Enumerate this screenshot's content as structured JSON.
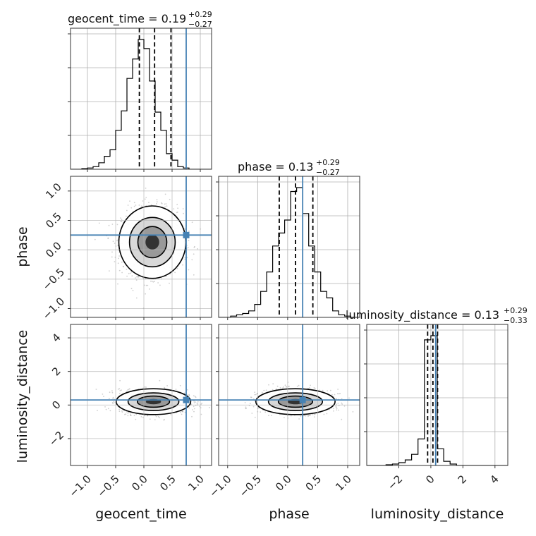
{
  "chart_data": {
    "type": "corner",
    "parameters": [
      "geocent_time",
      "phase",
      "luminosity_distance"
    ],
    "truths": [
      0.75,
      0.25,
      0.3
    ],
    "colors": {
      "truth": "#4682b4",
      "hist": "#000000",
      "grid": "#b0b0b0",
      "scatter": "#777777"
    },
    "grid": true,
    "marginals": [
      {
        "parameter": "geocent_time",
        "title": "geocent_time = 0.19",
        "title_plus": "+0.29",
        "title_minus": "−0.27",
        "median": 0.19,
        "quantiles": [
          -0.08,
          0.19,
          0.48
        ],
        "range": [
          -1.3,
          1.2
        ],
        "bin_edges": [
          -1.3,
          -1.2,
          -1.1,
          -1.0,
          -0.9,
          -0.8,
          -0.7,
          -0.6,
          -0.5,
          -0.4,
          -0.3,
          -0.2,
          -0.1,
          0.0,
          0.1,
          0.2,
          0.3,
          0.4,
          0.5,
          0.6,
          0.7,
          0.8,
          0.9,
          1.0,
          1.1,
          1.2
        ],
        "counts": [
          0,
          0,
          0.005,
          0.01,
          0.02,
          0.05,
          0.1,
          0.15,
          0.3,
          0.45,
          0.7,
          0.85,
          1.0,
          0.93,
          0.68,
          0.44,
          0.3,
          0.12,
          0.07,
          0.02,
          0.01,
          0,
          0,
          0,
          0
        ]
      },
      {
        "parameter": "phase",
        "title": "phase = 0.13",
        "title_plus": "+0.29",
        "title_minus": "−0.27",
        "median": 0.13,
        "quantiles": [
          -0.14,
          0.13,
          0.42
        ],
        "range": [
          -1.15,
          1.2
        ],
        "bin_edges": [
          -1.15,
          -1.05,
          -0.95,
          -0.85,
          -0.75,
          -0.65,
          -0.55,
          -0.45,
          -0.35,
          -0.25,
          -0.15,
          -0.05,
          0.05,
          0.15,
          0.25,
          0.35,
          0.45,
          0.55,
          0.65,
          0.75,
          0.85,
          0.95,
          1.05,
          1.15,
          1.2
        ],
        "counts": [
          0,
          0,
          0.01,
          0.02,
          0.03,
          0.05,
          0.1,
          0.2,
          0.35,
          0.55,
          0.65,
          0.75,
          0.97,
          1.0,
          0.8,
          0.55,
          0.35,
          0.2,
          0.15,
          0.05,
          0.02,
          0.01,
          0,
          0
        ]
      },
      {
        "parameter": "luminosity_distance",
        "title": "luminosity_distance = 0.13",
        "title_plus": "+0.29",
        "title_minus": "−0.33",
        "median": 0.13,
        "quantiles": [
          -0.2,
          0.13,
          0.42
        ],
        "range": [
          -4.0,
          4.8
        ],
        "bin_edges": [
          -4.0,
          -3.6,
          -3.2,
          -2.8,
          -2.4,
          -2.0,
          -1.6,
          -1.2,
          -0.8,
          -0.4,
          0.0,
          0.4,
          0.8,
          1.2,
          1.6,
          2.0,
          2.4,
          2.8,
          3.2,
          3.6,
          4.0,
          4.4,
          4.8
        ],
        "counts": [
          0,
          0,
          0,
          0.005,
          0.01,
          0.02,
          0.04,
          0.08,
          0.19,
          0.9,
          0.93,
          0.12,
          0.03,
          0.01,
          0,
          0,
          0,
          0,
          0,
          0,
          0,
          0
        ]
      }
    ],
    "pairs": [
      {
        "x": "geocent_time",
        "y": "phase",
        "x_range": [
          -1.3,
          1.2
        ],
        "y_range": [
          -1.15,
          1.25
        ],
        "center": [
          0.15,
          0.13
        ],
        "spread": [
          0.27,
          0.28
        ]
      },
      {
        "x": "geocent_time",
        "y": "luminosity_distance",
        "x_range": [
          -1.3,
          1.2
        ],
        "y_range": [
          -3.6,
          4.8
        ],
        "center": [
          0.17,
          0.2
        ],
        "spread": [
          0.3,
          0.35
        ]
      },
      {
        "x": "phase",
        "y": "luminosity_distance",
        "x_range": [
          -1.15,
          1.2
        ],
        "y_range": [
          -3.6,
          4.8
        ],
        "center": [
          0.13,
          0.2
        ],
        "spread": [
          0.3,
          0.35
        ]
      }
    ],
    "axis_ticks": {
      "geocent_time": {
        "values": [
          -1.0,
          -0.5,
          0.0,
          0.5,
          1.0
        ],
        "labels": [
          "−1.0",
          "−0.5",
          "0.0",
          "0.5",
          "1.0"
        ]
      },
      "phase_x": {
        "values": [
          -1.0,
          -0.5,
          0.0,
          0.5,
          1.0
        ],
        "labels": [
          "−1.0",
          "−0.5",
          "0.0",
          "0.5",
          "1.0"
        ]
      },
      "phase_y": {
        "values": [
          -1.0,
          -0.5,
          0.0,
          0.5,
          1.0
        ],
        "labels": [
          "−1.0",
          "−0.5",
          "0.0",
          "0.5",
          "1.0"
        ]
      },
      "luminosity_distance_x": {
        "values": [
          -2,
          0,
          2,
          4
        ],
        "labels": [
          "−2",
          "0",
          "2",
          "4"
        ]
      },
      "luminosity_distance_y": {
        "values": [
          -2,
          0,
          2,
          4
        ],
        "labels": [
          "−2",
          "0",
          "2",
          "4"
        ]
      }
    },
    "xlabels": [
      "geocent_time",
      "phase",
      "luminosity_distance"
    ],
    "ylabels": [
      "phase",
      "luminosity_distance"
    ]
  }
}
